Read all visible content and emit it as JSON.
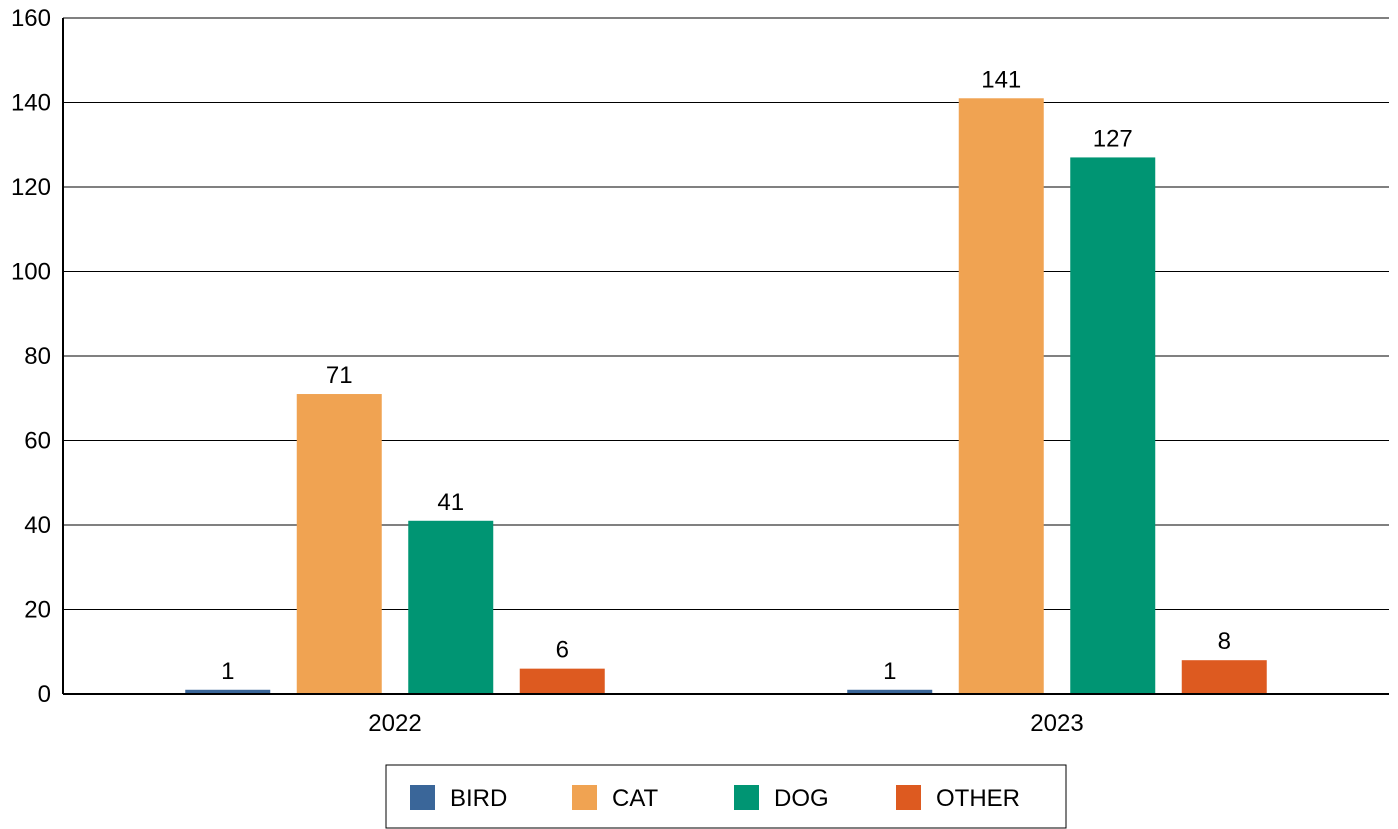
{
  "chart_data": {
    "type": "bar",
    "title": "",
    "xlabel": "",
    "ylabel": "",
    "categories": [
      "2022",
      "2023"
    ],
    "series": [
      {
        "name": "BIRD",
        "values": [
          1,
          1
        ],
        "color": "#3a6699"
      },
      {
        "name": "CAT",
        "values": [
          71,
          141
        ],
        "color": "#f0a352"
      },
      {
        "name": "DOG",
        "values": [
          41,
          127
        ],
        "color": "#009573"
      },
      {
        "name": "OTHER",
        "values": [
          6,
          8
        ],
        "color": "#dd5a20"
      }
    ],
    "ylim": [
      0,
      160
    ],
    "yticks": [
      0,
      20,
      40,
      60,
      80,
      100,
      120,
      140,
      160
    ],
    "ytick_labels": [
      "0",
      "20",
      "40",
      "60",
      "80",
      "100",
      "120",
      "140",
      "160"
    ],
    "grid": true,
    "data_labels": true,
    "legend_position": "bottom"
  }
}
